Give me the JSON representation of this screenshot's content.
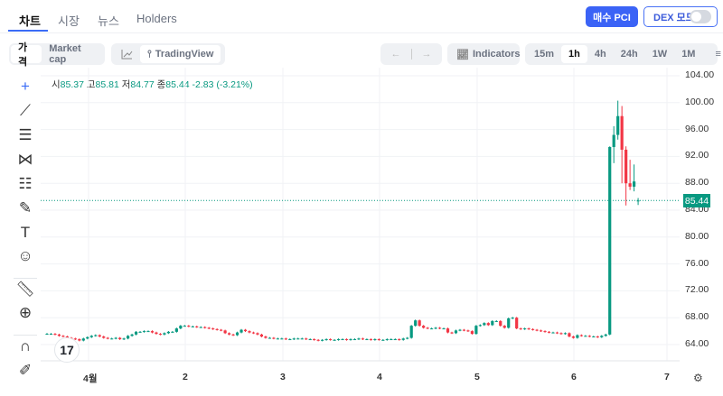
{
  "tabs": [
    {
      "label": "차트",
      "active": true
    },
    {
      "label": "시장"
    },
    {
      "label": "뉴스"
    },
    {
      "label": "Holders"
    }
  ],
  "header": {
    "buy_label": "매수 PCI",
    "dex_label": "DEX 모드",
    "dex_on": false,
    "accent": "#3b63f6"
  },
  "toolbar": {
    "price_label": "가격",
    "mcap_label": "Market cap",
    "tradingview_label": "TradingView",
    "indicators_label": "Indicators",
    "intervals": [
      "15m",
      "1h",
      "4h",
      "24h",
      "1W",
      "1M"
    ],
    "active_interval": "1h"
  },
  "ohlc": {
    "o_label": "시",
    "o": "85.37",
    "h_label": "고",
    "h": "85.81",
    "l_label": "저",
    "l": "84.77",
    "c_label": "종",
    "c": "85.44",
    "change": "-2.83 (-3.21%)"
  },
  "left_tools": [
    "crosshair-icon",
    "trend-line-icon",
    "horizontal-lines-icon",
    "pattern-icon",
    "fib-icon",
    "brush-icon",
    "text-icon",
    "emoji-icon",
    "ruler-icon",
    "zoom-in-icon",
    "magnet-icon",
    "lock-draw-icon"
  ],
  "chart_data": {
    "type": "candlestick",
    "interval": "1h",
    "colors": {
      "up": "#089981",
      "down": "#f23645"
    },
    "y_ticks": [
      "104.00",
      "100.00",
      "96.00",
      "92.00",
      "88.00",
      "84.00",
      "80.00",
      "76.00",
      "72.00",
      "68.00",
      "64.00"
    ],
    "ylim": [
      64,
      104
    ],
    "x_ticks": [
      "4월",
      "2",
      "3",
      "4",
      "5",
      "6",
      "7"
    ],
    "last_price": "85.44",
    "closes": [
      65.6,
      65.6,
      65.5,
      65.3,
      65.2,
      65.0,
      64.9,
      64.8,
      64.6,
      64.9,
      65.1,
      65.3,
      65.4,
      65.2,
      65.0,
      64.9,
      64.9,
      65.0,
      64.8,
      64.9,
      65.3,
      65.5,
      65.9,
      65.9,
      66.0,
      66.0,
      65.8,
      65.6,
      65.5,
      65.7,
      65.9,
      65.9,
      66.4,
      66.8,
      66.8,
      66.7,
      66.7,
      66.6,
      66.6,
      66.5,
      66.4,
      66.3,
      66.2,
      66.1,
      65.7,
      65.5,
      65.4,
      65.8,
      66.2,
      66.0,
      65.8,
      65.7,
      65.5,
      65.2,
      65.0,
      65.0,
      64.9,
      64.9,
      64.9,
      64.8,
      64.8,
      64.9,
      64.9,
      64.9,
      64.8,
      64.8,
      64.7,
      64.6,
      64.7,
      64.8,
      64.7,
      64.7,
      64.8,
      64.8,
      64.7,
      64.8,
      64.8,
      64.9,
      64.8,
      64.8,
      64.7,
      64.8,
      64.7,
      64.7,
      64.8,
      64.8,
      64.8,
      64.7,
      64.9,
      65.0,
      66.8,
      67.6,
      66.8,
      66.5,
      66.4,
      66.4,
      66.5,
      66.4,
      66.4,
      65.8,
      65.7,
      66.1,
      66.2,
      66.1,
      66.0,
      65.6,
      66.8,
      66.9,
      67.2,
      66.9,
      67.5,
      67.5,
      66.8,
      66.5,
      67.9,
      68.0,
      66.4,
      66.3,
      66.4,
      66.3,
      66.2,
      66.1,
      66.0,
      65.9,
      65.8,
      65.8,
      65.7,
      65.6,
      65.7,
      65.2,
      65.0,
      65.4,
      65.3,
      65.3,
      65.2,
      65.2,
      65.1,
      65.3,
      65.5
    ],
    "final_ohlc": [
      [
        65.5,
        93.5,
        65.4,
        93.4
      ],
      [
        93.4,
        96.5,
        91.0,
        95.2
      ],
      [
        95.2,
        100.3,
        94.5,
        98.0
      ],
      [
        98.0,
        99.5,
        88.0,
        93.0
      ],
      [
        93.0,
        93.5,
        84.7,
        88.0
      ],
      [
        88.0,
        91.5,
        87.0,
        87.5
      ],
      [
        87.5,
        90.8,
        86.8,
        88.27
      ],
      [
        85.37,
        85.81,
        84.77,
        85.44
      ]
    ]
  }
}
